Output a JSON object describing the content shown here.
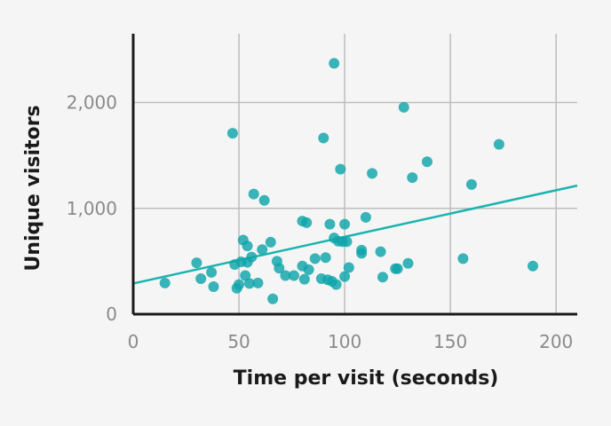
{
  "chart_data": {
    "type": "scatter",
    "title": "",
    "xlabel": "Time per visit (seconds)",
    "ylabel": "Unique visitors",
    "xlim": [
      0,
      210
    ],
    "ylim": [
      0,
      2650
    ],
    "x_ticks": [
      0,
      50,
      100,
      150,
      200
    ],
    "x_tick_labels": [
      "0",
      "50",
      "100",
      "150",
      "200"
    ],
    "y_ticks": [
      0,
      1000,
      2000
    ],
    "y_tick_labels": [
      "0",
      "1,000",
      "2,000"
    ],
    "grid": true,
    "point_color": "#0fa5aa",
    "trend_color": "#1ab4ae",
    "trendline": {
      "x": [
        0,
        210
      ],
      "y": [
        290,
        1215
      ]
    },
    "points": [
      {
        "x": 15,
        "y": 295
      },
      {
        "x": 30,
        "y": 485
      },
      {
        "x": 32,
        "y": 335
      },
      {
        "x": 37,
        "y": 395
      },
      {
        "x": 38,
        "y": 260
      },
      {
        "x": 47,
        "y": 1710
      },
      {
        "x": 48,
        "y": 470
      },
      {
        "x": 49,
        "y": 245
      },
      {
        "x": 50,
        "y": 280
      },
      {
        "x": 51,
        "y": 495
      },
      {
        "x": 52,
        "y": 700
      },
      {
        "x": 53,
        "y": 365
      },
      {
        "x": 54,
        "y": 490
      },
      {
        "x": 54,
        "y": 645
      },
      {
        "x": 55,
        "y": 290
      },
      {
        "x": 56,
        "y": 540
      },
      {
        "x": 57,
        "y": 1135
      },
      {
        "x": 59,
        "y": 295
      },
      {
        "x": 61,
        "y": 610
      },
      {
        "x": 62,
        "y": 1075
      },
      {
        "x": 65,
        "y": 680
      },
      {
        "x": 66,
        "y": 145
      },
      {
        "x": 68,
        "y": 500
      },
      {
        "x": 69,
        "y": 435
      },
      {
        "x": 72,
        "y": 365
      },
      {
        "x": 76,
        "y": 365
      },
      {
        "x": 80,
        "y": 880
      },
      {
        "x": 80,
        "y": 455
      },
      {
        "x": 81,
        "y": 330
      },
      {
        "x": 82,
        "y": 865
      },
      {
        "x": 83,
        "y": 420
      },
      {
        "x": 86,
        "y": 525
      },
      {
        "x": 89,
        "y": 335
      },
      {
        "x": 90,
        "y": 1665
      },
      {
        "x": 91,
        "y": 535
      },
      {
        "x": 92,
        "y": 325
      },
      {
        "x": 93,
        "y": 850
      },
      {
        "x": 94,
        "y": 310
      },
      {
        "x": 95,
        "y": 2370
      },
      {
        "x": 95,
        "y": 720
      },
      {
        "x": 96,
        "y": 280
      },
      {
        "x": 97,
        "y": 690
      },
      {
        "x": 98,
        "y": 1370
      },
      {
        "x": 99,
        "y": 685
      },
      {
        "x": 100,
        "y": 355
      },
      {
        "x": 100,
        "y": 850
      },
      {
        "x": 101,
        "y": 685
      },
      {
        "x": 102,
        "y": 440
      },
      {
        "x": 108,
        "y": 575
      },
      {
        "x": 108,
        "y": 605
      },
      {
        "x": 110,
        "y": 915
      },
      {
        "x": 113,
        "y": 1330
      },
      {
        "x": 117,
        "y": 590
      },
      {
        "x": 118,
        "y": 350
      },
      {
        "x": 124,
        "y": 430
      },
      {
        "x": 125,
        "y": 430
      },
      {
        "x": 128,
        "y": 1955
      },
      {
        "x": 130,
        "y": 480
      },
      {
        "x": 132,
        "y": 1290
      },
      {
        "x": 139,
        "y": 1440
      },
      {
        "x": 156,
        "y": 525
      },
      {
        "x": 160,
        "y": 1225
      },
      {
        "x": 173,
        "y": 1605
      },
      {
        "x": 189,
        "y": 455
      }
    ]
  }
}
